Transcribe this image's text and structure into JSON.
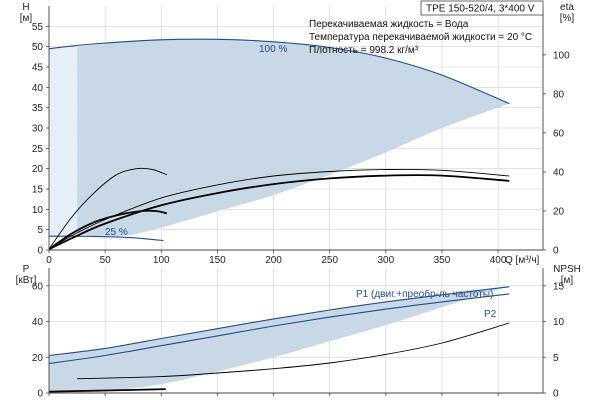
{
  "chart_data": [
    {
      "id": "head",
      "type": "line",
      "title": "TPE 150-520/4, 3*400 V",
      "info_lines": [
        "Перекачиваемая жидкость = Вода",
        "Температура перекачиваемой жидкости = 20 °C",
        "Плотность = 998.2 кг/м³"
      ],
      "ylabel_left": [
        "H",
        "[м]"
      ],
      "ylabel_right": [
        "eta",
        "[%]"
      ],
      "xlabel": "Q [м³/ч]",
      "xlim": [
        0,
        440
      ],
      "ylim": [
        0,
        60
      ],
      "ylim_right": [
        0,
        125
      ],
      "x_ticks": [
        0,
        50,
        100,
        150,
        200,
        250,
        300,
        350,
        400
      ],
      "y_ticks": [
        0,
        5,
        10,
        15,
        20,
        25,
        30,
        35,
        40,
        45,
        50,
        55
      ],
      "y_ticks_right": [
        0,
        20,
        40,
        60,
        80,
        100
      ],
      "grid": true,
      "operating_range": {
        "upper": {
          "x": [
            25,
            60,
            100,
            150,
            200,
            250,
            300,
            350,
            410
          ],
          "y": [
            50,
            51.2,
            51.8,
            51.8,
            51.2,
            49.8,
            47.2,
            43,
            36
          ]
        },
        "lower": {
          "x": [
            410,
            350,
            300,
            250,
            200,
            150,
            100,
            60,
            25
          ],
          "y": [
            36,
            30,
            24,
            18.5,
            13.5,
            9.5,
            5.5,
            3.2,
            4
          ]
        }
      },
      "light_region": {
        "x": [
          0,
          25,
          25,
          0
        ],
        "y": [
          49.5,
          50,
          3.5,
          3
        ]
      },
      "series": [
        {
          "name": "100 %",
          "axis": "left",
          "x": [
            0,
            25,
            50,
            100,
            150,
            200,
            250,
            300,
            350,
            410
          ],
          "y": [
            49.5,
            50.3,
            50.9,
            51.7,
            51.8,
            51.2,
            49.8,
            47.2,
            43,
            36
          ]
        },
        {
          "name": "25 %",
          "axis": "left",
          "x": [
            0,
            20,
            40,
            60,
            80,
            102
          ],
          "y": [
            3.4,
            3.4,
            3.35,
            3.2,
            2.9,
            2.3
          ]
        },
        {
          "axis": "left",
          "style": "thick",
          "x": [
            0,
            25,
            50,
            100,
            150,
            200,
            250,
            300,
            350,
            410
          ],
          "y": [
            0.2,
            3.5,
            6.5,
            11,
            14,
            16.2,
            17.6,
            18.3,
            18.3,
            17
          ]
        },
        {
          "axis": "left",
          "style": "thin",
          "x": [
            0,
            25,
            50,
            100,
            150,
            200,
            250,
            300,
            350,
            410
          ],
          "y": [
            0.3,
            4.2,
            7.5,
            12.8,
            16,
            18.2,
            19.3,
            19.8,
            19.6,
            18.2
          ]
        },
        {
          "axis": "left",
          "style": "thin",
          "x": [
            0,
            20,
            40,
            60,
            78,
            92,
            105
          ],
          "y": [
            0.2,
            8,
            14,
            18.5,
            20,
            19.8,
            18.5
          ]
        },
        {
          "axis": "left",
          "style": "thick",
          "x": [
            0,
            20,
            40,
            60,
            80,
            95,
            105
          ],
          "y": [
            0.2,
            4,
            6.8,
            8.5,
            9.5,
            9.6,
            9
          ]
        }
      ]
    },
    {
      "id": "power-npsh",
      "type": "line",
      "ylabel_left": [
        "P",
        "[кВт]"
      ],
      "ylabel_right": [
        "NPSH",
        "[м]"
      ],
      "xlim": [
        0,
        440
      ],
      "ylim": [
        0,
        70
      ],
      "ylim_right": [
        0,
        17.5
      ],
      "y_ticks": [
        0,
        20,
        40,
        60
      ],
      "y_ticks_right": [
        0,
        5,
        10,
        15
      ],
      "grid": true,
      "operating_range": {
        "upper": {
          "x": [
            0,
            50,
            100,
            150,
            200,
            250,
            300,
            350,
            410
          ],
          "y": [
            21,
            25,
            30.5,
            36,
            41.5,
            46.5,
            51,
            55,
            60
          ]
        },
        "lower": {
          "x": [
            410,
            350,
            300,
            250,
            200,
            150,
            100,
            50,
            0
          ],
          "y": [
            60,
            48,
            38,
            29,
            20,
            12,
            5,
            1,
            0
          ]
        }
      },
      "series": [
        {
          "name": "P1 (двиг.+преобр-ль частоты)",
          "axis": "left",
          "x": [
            0,
            50,
            100,
            150,
            200,
            250,
            300,
            350,
            410
          ],
          "y": [
            21,
            25,
            30.5,
            36,
            41.5,
            46.5,
            51,
            55,
            59.5
          ]
        },
        {
          "name": "P2",
          "axis": "left",
          "x": [
            0,
            50,
            100,
            150,
            200,
            250,
            300,
            350,
            410
          ],
          "y": [
            16.5,
            21,
            26.5,
            32,
            37.5,
            42.5,
            47,
            51,
            55.5
          ]
        },
        {
          "axis": "right",
          "style": "thin",
          "x": [
            25,
            100,
            150,
            200,
            250,
            300,
            350,
            410
          ],
          "y": [
            2.0,
            2.3,
            2.8,
            3.4,
            4.2,
            5.4,
            7.0,
            9.8
          ]
        },
        {
          "axis": "left",
          "style": "thick",
          "x": [
            0,
            50,
            104
          ],
          "y": [
            0.8,
            1.4,
            2.2
          ]
        }
      ]
    }
  ]
}
